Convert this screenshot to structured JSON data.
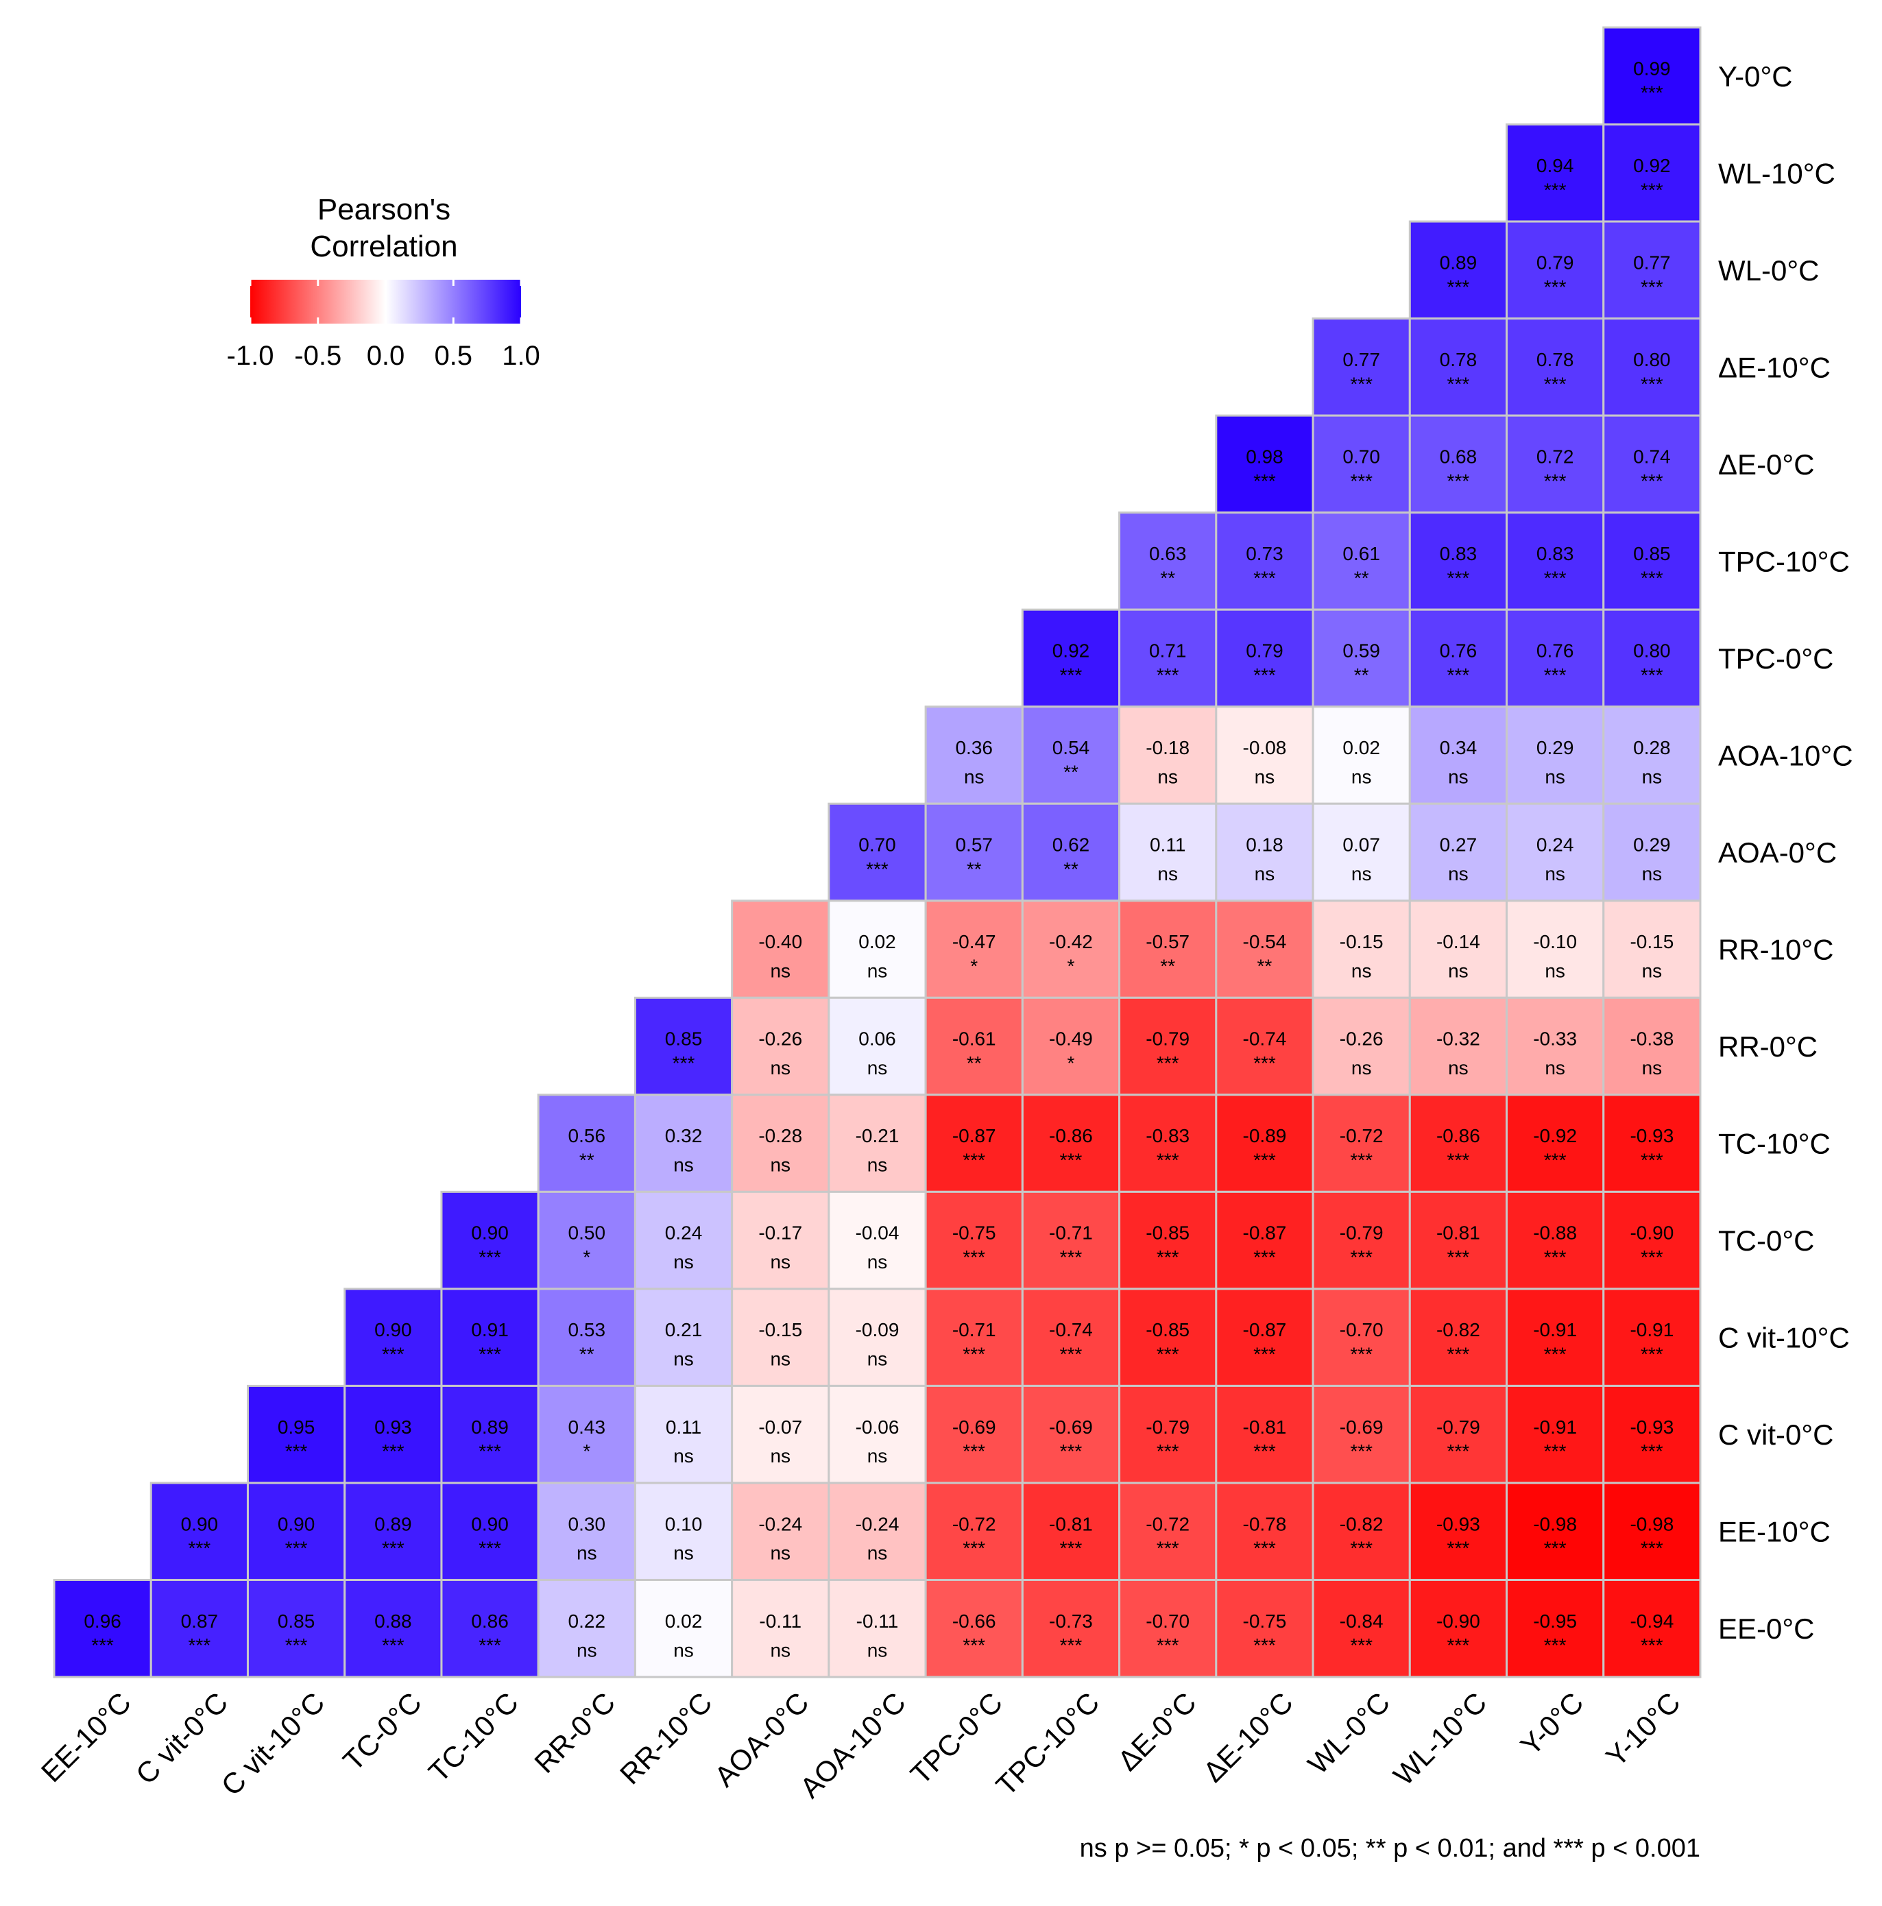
{
  "chart_data": {
    "type": "heatmap",
    "title": "",
    "legend": {
      "title_lines": [
        "Pearson's",
        "Correlation"
      ],
      "tick_labels": [
        "-1.0",
        "-0.5",
        "0.0",
        "0.5",
        "1.0"
      ],
      "tick_values": [
        -1.0,
        -0.5,
        0.0,
        0.5,
        1.0
      ],
      "colors": {
        "low": "#ff0000",
        "mid": "#ffffff",
        "high": "#2a00ff"
      },
      "placement": "top-left"
    },
    "x_labels": [
      "EE-10°C",
      "C vit-0°C",
      "C vit-10°C",
      "TC-0°C",
      "TC-10°C",
      "RR-0°C",
      "RR-10°C",
      "AOA-0°C",
      "AOA-10°C",
      "TPC-0°C",
      "TPC-10°C",
      "ΔE-0°C",
      "ΔE-10°C",
      "WL-0°C",
      "WL-10°C",
      "Y-0°C",
      "Y-10°C"
    ],
    "y_labels": [
      "Y-0°C",
      "WL-10°C",
      "WL-0°C",
      "ΔE-10°C",
      "ΔE-0°C",
      "TPC-10°C",
      "TPC-0°C",
      "AOA-10°C",
      "AOA-0°C",
      "RR-10°C",
      "RR-0°C",
      "TC-10°C",
      "TC-0°C",
      "C vit-10°C",
      "C vit-0°C",
      "EE-10°C",
      "EE-0°C"
    ],
    "rows": [
      {
        "values": [
          "0.99"
        ],
        "sig": [
          "***"
        ]
      },
      {
        "values": [
          "0.94",
          "0.92"
        ],
        "sig": [
          "***",
          "***"
        ]
      },
      {
        "values": [
          "0.89",
          "0.79",
          "0.77"
        ],
        "sig": [
          "***",
          "***",
          "***"
        ]
      },
      {
        "values": [
          "0.77",
          "0.78",
          "0.78",
          "0.80"
        ],
        "sig": [
          "***",
          "***",
          "***",
          "***"
        ]
      },
      {
        "values": [
          "0.98",
          "0.70",
          "0.68",
          "0.72",
          "0.74"
        ],
        "sig": [
          "***",
          "***",
          "***",
          "***",
          "***"
        ]
      },
      {
        "values": [
          "0.63",
          "0.73",
          "0.61",
          "0.83",
          "0.83",
          "0.85"
        ],
        "sig": [
          "**",
          "***",
          "**",
          "***",
          "***",
          "***"
        ]
      },
      {
        "values": [
          "0.92",
          "0.71",
          "0.79",
          "0.59",
          "0.76",
          "0.76",
          "0.80"
        ],
        "sig": [
          "***",
          "***",
          "***",
          "**",
          "***",
          "***",
          "***"
        ]
      },
      {
        "values": [
          "0.36",
          "0.54",
          "-0.18",
          "-0.08",
          "0.02",
          "0.34",
          "0.29",
          "0.28"
        ],
        "sig": [
          "ns",
          "**",
          "ns",
          "ns",
          "ns",
          "ns",
          "ns",
          "ns"
        ]
      },
      {
        "values": [
          "0.70",
          "0.57",
          "0.62",
          "0.11",
          "0.18",
          "0.07",
          "0.27",
          "0.24",
          "0.29"
        ],
        "sig": [
          "***",
          "**",
          "**",
          "ns",
          "ns",
          "ns",
          "ns",
          "ns",
          "ns"
        ]
      },
      {
        "values": [
          "-0.40",
          "0.02",
          "-0.47",
          "-0.42",
          "-0.57",
          "-0.54",
          "-0.15",
          "-0.14",
          "-0.10",
          "-0.15"
        ],
        "sig": [
          "ns",
          "ns",
          "*",
          "*",
          "**",
          "**",
          "ns",
          "ns",
          "ns",
          "ns"
        ]
      },
      {
        "values": [
          "0.85",
          "-0.26",
          "0.06",
          "-0.61",
          "-0.49",
          "-0.79",
          "-0.74",
          "-0.26",
          "-0.32",
          "-0.33",
          "-0.38"
        ],
        "sig": [
          "***",
          "ns",
          "ns",
          "**",
          "*",
          "***",
          "***",
          "ns",
          "ns",
          "ns",
          "ns"
        ]
      },
      {
        "values": [
          "0.56",
          "0.32",
          "-0.28",
          "-0.21",
          "-0.87",
          "-0.86",
          "-0.83",
          "-0.89",
          "-0.72",
          "-0.86",
          "-0.92",
          "-0.93"
        ],
        "sig": [
          "**",
          "ns",
          "ns",
          "ns",
          "***",
          "***",
          "***",
          "***",
          "***",
          "***",
          "***",
          "***"
        ]
      },
      {
        "values": [
          "0.90",
          "0.50",
          "0.24",
          "-0.17",
          "-0.04",
          "-0.75",
          "-0.71",
          "-0.85",
          "-0.87",
          "-0.79",
          "-0.81",
          "-0.88",
          "-0.90"
        ],
        "sig": [
          "***",
          "*",
          "ns",
          "ns",
          "ns",
          "***",
          "***",
          "***",
          "***",
          "***",
          "***",
          "***",
          "***"
        ]
      },
      {
        "values": [
          "0.90",
          "0.91",
          "0.53",
          "0.21",
          "-0.15",
          "-0.09",
          "-0.71",
          "-0.74",
          "-0.85",
          "-0.87",
          "-0.70",
          "-0.82",
          "-0.91",
          "-0.91"
        ],
        "sig": [
          "***",
          "***",
          "**",
          "ns",
          "ns",
          "ns",
          "***",
          "***",
          "***",
          "***",
          "***",
          "***",
          "***",
          "***"
        ]
      },
      {
        "values": [
          "0.95",
          "0.93",
          "0.89",
          "0.43",
          "0.11",
          "-0.07",
          "-0.06",
          "-0.69",
          "-0.69",
          "-0.79",
          "-0.81",
          "-0.69",
          "-0.79",
          "-0.91",
          "-0.93"
        ],
        "sig": [
          "***",
          "***",
          "***",
          "*",
          "ns",
          "ns",
          "ns",
          "***",
          "***",
          "***",
          "***",
          "***",
          "***",
          "***",
          "***"
        ]
      },
      {
        "values": [
          "0.90",
          "0.90",
          "0.89",
          "0.90",
          "0.30",
          "0.10",
          "-0.24",
          "-0.24",
          "-0.72",
          "-0.81",
          "-0.72",
          "-0.78",
          "-0.82",
          "-0.93",
          "-0.98",
          "-0.98"
        ],
        "sig": [
          "***",
          "***",
          "***",
          "***",
          "ns",
          "ns",
          "ns",
          "ns",
          "***",
          "***",
          "***",
          "***",
          "***",
          "***",
          "***",
          "***"
        ]
      },
      {
        "values": [
          "0.96",
          "0.87",
          "0.85",
          "0.88",
          "0.86",
          "0.22",
          "0.02",
          "-0.11",
          "-0.11",
          "-0.66",
          "-0.73",
          "-0.70",
          "-0.75",
          "-0.84",
          "-0.90",
          "-0.95",
          "-0.94"
        ],
        "sig": [
          "***",
          "***",
          "***",
          "***",
          "***",
          "ns",
          "ns",
          "ns",
          "ns",
          "***",
          "***",
          "***",
          "***",
          "***",
          "***",
          "***",
          "***"
        ]
      }
    ],
    "footnote": "ns p >= 0.05; * p < 0.05; ** p < 0.01; and *** p < 0.001"
  }
}
